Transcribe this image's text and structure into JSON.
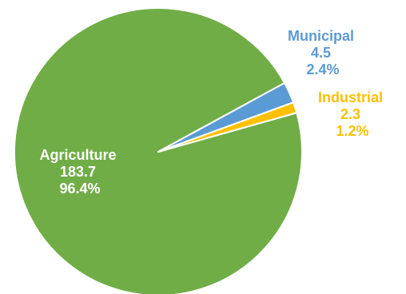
{
  "chart_data": {
    "type": "pie",
    "title": "",
    "slices": [
      {
        "name": "Agriculture",
        "value": 183.7,
        "percent": "96.4%",
        "value_label": "183.7",
        "color": "#70AD47"
      },
      {
        "name": "Municipal",
        "value": 4.5,
        "percent": "2.4%",
        "value_label": "4.5",
        "color": "#5B9BD5"
      },
      {
        "name": "Industrial",
        "value": 2.3,
        "percent": "1.2%",
        "value_label": "2.3",
        "color": "#FFC000"
      }
    ],
    "label_colors": {
      "Agriculture": "#FFFFFF",
      "Municipal": "#5B9BD5",
      "Industrial": "#FFC000"
    },
    "legend": "none"
  }
}
